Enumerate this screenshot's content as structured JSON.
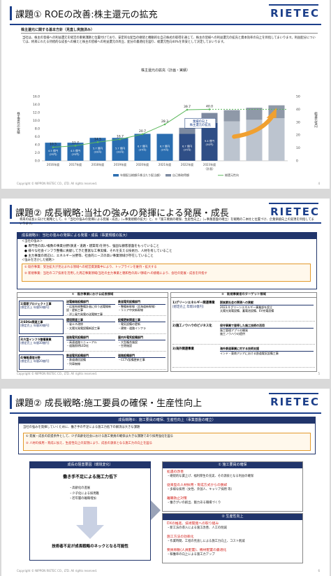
{
  "slide1": {
    "title": "課題① ROEの改善:株主還元の拡充",
    "logo": "RIETEC",
    "policy_heading": "株主還元に関する基本方針（見直し実施済み）",
    "policy_text": "当社は、株主の皆様への利益還元を経営の重要課題と位置付けており、安定的な配当の継続と機動的な自己株式の取得を通じて、株主の皆様への利益還元の拡充と資本効率の向上を目指してまいります。利益配分については、将来にわたる持続的な成長への備えと株主の皆様への利益還元の両立、配分の最適化を図り、総還元性向40%を目安として決定してまいります。",
    "chart_caption": "株主還元の拡充（計画・実績）",
    "footer": "Copyright © NIPPON RIETEC CO., LTD. All rights reserved.",
    "page": "4",
    "chart_data": {
      "type": "bar",
      "ylabel_left": "株主還元の実績",
      "ylabel_right": "総還元性向",
      "ylim_left": [
        0,
        16
      ],
      "yticks_left": [
        "0.0",
        "2.0",
        "4.0",
        "6.0",
        "8.0",
        "10.0",
        "12.0",
        "14.0",
        "16.0"
      ],
      "ylim_right": [
        0,
        50
      ],
      "yticks_right": [
        "0",
        "10",
        "20",
        "30",
        "40",
        "50"
      ],
      "categories": [
        "2016年度",
        "2017年度",
        "2018年度",
        "2019年度",
        "2020年度",
        "2021年度",
        "2022年度",
        "2023年度",
        "",
        "",
        ""
      ],
      "bar_segment_labels": [
        "4.5 億円 (25円)",
        "4.5 億円 (25円)",
        "5.7 億円 (32円)",
        "5.7 億円 (32円)",
        "6.7 億円 (37円)",
        "6.7 億円 (37円)",
        "6.7 億円 (37円)",
        "9.4 億円 (50円)"
      ],
      "series": [
        {
          "name": "年間配当総額(1株当たり配当額)",
          "values": [
            4.5,
            4.5,
            5.7,
            5.7,
            6.7,
            6.7,
            6.7,
            9.4,
            9.8,
            10.2,
            10.6
          ]
        },
        {
          "name": "自己株取得額",
          "values": [
            0,
            0,
            0,
            0,
            0,
            0,
            1.5,
            2.5,
            2.8,
            3.0,
            3.2
          ]
        },
        {
          "name": "総還元性向",
          "values": [
            10.5,
            11.7,
            14.5,
            16.7,
            20.7,
            28.3,
            39.7,
            40.0,
            null,
            null,
            null
          ],
          "display": [
            "10.5",
            "11.7",
            "14.5",
            "16.7",
            "20.7",
            "28.3",
            "39.7",
            "40.0"
          ]
        }
      ],
      "annotations": [
        "（計画）",
        "業績の向上 株主還元の拡充"
      ],
      "legend_position": "bottom"
    }
  },
  "slide2": {
    "title": "課題② 成長戦略:当社の強みの発揮による発展・成長",
    "intro": "将来の成長に向けた戦略として、①「当社の強みの発揮による発展・成長」（=事業規模の拡大）と、②「施工要員の確保、生産性向上」（=事業基盤の確立）を戦略の二本柱と位置づけ、企業価値向上の実現を目指してまいります。",
    "strategy_header": "成長戦略①：当社の強みの発揮による発展・成長（事業規模の拡大）",
    "strengths_title": "＜当社の強み＞",
    "strengths": [
      "専門性の高い複数の事業分野(鉄道・道路・建築等)を持ち、強固な顧客基盤をもっていること",
      "様々な社会インフラ整備に貢献してきた豊富な工事実績、それを支える技術力、人材を有していること",
      "主力事業の周辺に、エネルギー分野等、社会的ニーズの高い事業領域が存在していること"
    ],
    "growth_title": "＜強みを活かした戦略＞",
    "growth": [
      "① 既存事業：受注拡大が見込まれる領域への経営資源集中により、トップラインを維持・拡大する",
      "② 新規事業：当社のコア技術を活用した周辺事業領域(当社の主力事業と親和性の高い領域)への挑戦により、会社の発展・成長を目指す"
    ],
    "existing_header": "①　既存事業における成長領域",
    "existing": [
      {
        "label": "1)国家プロジェクト工事",
        "sub": "[想定売上 年間50億円]",
        "a": "送電線路設備部門",
        "a_items": [
          "・広域系統整備計画に伴う送電線新設・更新工事",
          "・洋上風力発電の送電線工事"
        ],
        "b": "鉄道電気設備部門",
        "b_items": [
          "・整備新幹線（北海道新幹線）",
          "・リニア中央新幹線"
        ]
      },
      {
        "label": "2)SDGs関連工事",
        "sub": "[想定売上 年間30億円]",
        "a": "環境関連工事",
        "a_items": [
          "・省エネ改修",
          "・太陽光発電設備新設工事"
        ],
        "b": "設備更新関連工事",
        "b_items": [
          "・電気設備の更新",
          "・建物・道路インフラ"
        ]
      },
      {
        "label": "3)大型インフラ整備事業",
        "sub": "[想定売上 年間30億円]",
        "a": "道路電気設備部門",
        "a_items": [
          "・高速道路リニューアル",
          "・道路照明LED化"
        ],
        "b": "屋内外電気設備部門",
        "b_items": [
          "・大型複合施設",
          "・空港施設"
        ]
      },
      {
        "label": "4)情報通信分野",
        "sub": "[想定売上 年間20億円]",
        "a": "鉄道電気設備部門",
        "a_items": [
          "・鉄道通信設備",
          "・列車無線"
        ],
        "b": "道路設備部門",
        "b_items": [
          "・CCTV設備更新工事"
        ]
      }
    ],
    "new_header": "②　新規事業者のターゲット領域",
    "new_items": [
      {
        "label": "1)グリーンエネルギー関連事業",
        "sub": "[想定売上 年間10億円]",
        "desc": "脱炭素社会の実現への貢献",
        "desc_items": [
          "2023.4 グリーンエネルギー事業部を設立",
          "太陽光発電設備、蓄電池設備、EV充電設備"
        ]
      },
      {
        "label": "2)施工ノウハウのビジネス化",
        "sub": "",
        "desc": "保守事業で習得した施工技術の活用",
        "desc_items": [
          "施工管理アプリの開発",
          "施工ノウハウの提供"
        ]
      },
      {
        "label": "3)海外関連事業",
        "sub": "",
        "desc": "海外鉄道事業に対する技術支援",
        "desc_items": [
          "インド・東南アジアにおける鉄道電気設備工事"
        ]
      }
    ],
    "footer": "Copyright © NIPPON RIETEC CO., LTD. All rights reserved.",
    "page": "5"
  },
  "slide3": {
    "title": "課題② 成長戦略:施工要員の確保・生産性向上",
    "strategy_header": "成長戦略②：施工要員の確保、生産性向上（事業基盤の確立）",
    "desc": "当社の強みを発揮していくために、働き手の不足による施工力低下の解消は大きな課題",
    "points": [
      "① 発展・成長の前提条件として、少子高齢化社会における施工要員の確保は大きな課題であり採用強化を図る",
      "② 人材の採用・育成に加え、生産性向上の実現により、成長の源泉となる施工力の向上を図る"
    ],
    "left_header": "成長の阻害要因（環境変化）",
    "left_title": "働き手不足による施工力低下",
    "left_items": [
      "・高齢化の進展",
      "・少子化による採用難",
      "・若年層の離職増加"
    ],
    "left_bottom": "技術者不足が成長戦略のネックとなる可能性",
    "right1_header": "① 施工要員の確保",
    "right1_items": [
      {
        "h": "処遇の改善",
        "t": "・継続的な賃上げ、福利厚生の充実、その源泉となる利益の確保"
      },
      {
        "h": "従来型の人材採用・育成方式からの脱却",
        "t": "・多様な採用（女性、外国人、キャリア採用 等）"
      },
      {
        "h": "離職防止対策",
        "t": "・働きがいの創出、魅力ある職場づくり"
      }
    ],
    "right2_header": "② 生産性向上",
    "right2_items": [
      {
        "h": "DXの推進、技術開発への取り組み",
        "t": "・新工法の導入による施工改善、人工の削減"
      },
      {
        "h": "施工方法の効率化",
        "t": "・作業時間、工程の見直しによる施工力向上、コスト削減"
      },
      {
        "h": "要員稼動(人員配置)、機材配置の最適化",
        "t": "・稼働率の向上による施工力アップ"
      }
    ],
    "footer": "Copyright © NIPPON RIETEC CO., LTD. All rights reserved.",
    "page": "6"
  }
}
